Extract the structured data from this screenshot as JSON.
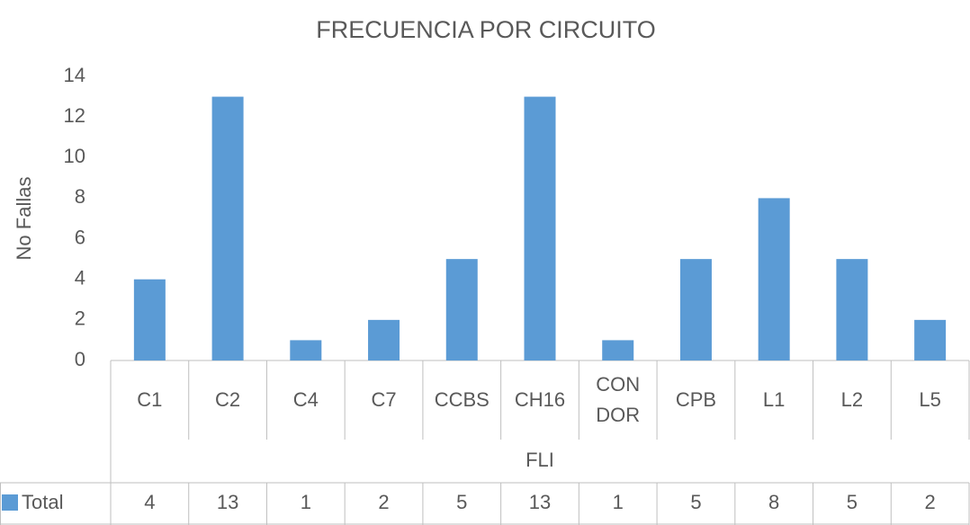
{
  "chart_data": {
    "type": "bar",
    "title": "FRECUENCIA POR CIRCUITO",
    "y_label": "No Fallas",
    "x_label": "FLI",
    "categories": [
      "C1",
      "C2",
      "C4",
      "C7",
      "CCBS",
      "CH16",
      "CON DOR",
      "CPB",
      "L1",
      "L2",
      "L5"
    ],
    "series": [
      {
        "name": "Total",
        "color": "#5b9bd5",
        "values": [
          4,
          13,
          1,
          2,
          5,
          13,
          1,
          5,
          8,
          5,
          2
        ]
      }
    ],
    "ylim": [
      0,
      14
    ],
    "yticks": [
      0,
      2,
      4,
      6,
      8,
      10,
      12,
      14
    ],
    "grid": false,
    "data_table": true
  }
}
